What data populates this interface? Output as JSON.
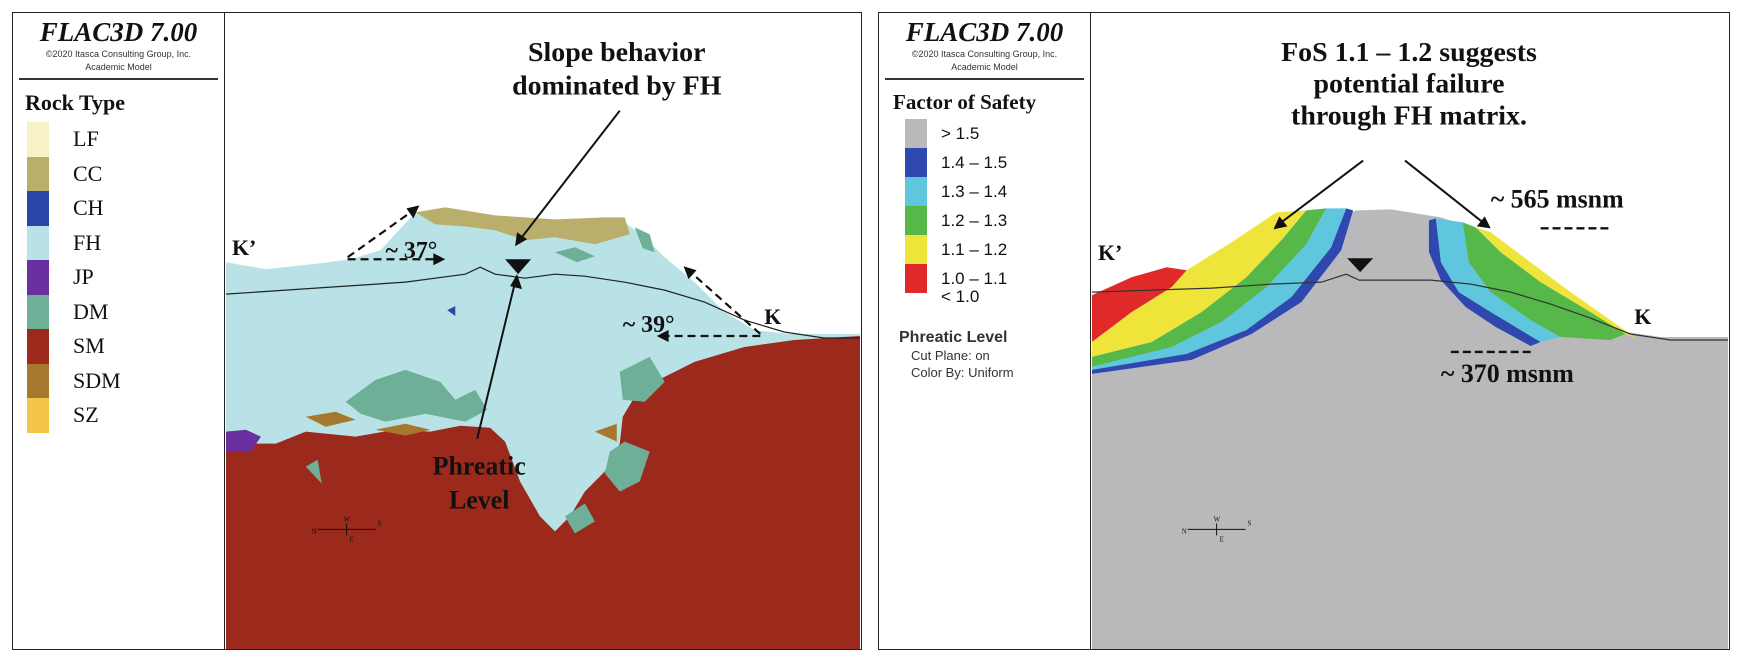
{
  "left_panel": {
    "brand": "FLAC3D 7.00",
    "copyright": "©2020 Itasca Consulting Group, Inc.",
    "model": "Academic Model",
    "legend_title": "Rock Type",
    "rock_types": [
      {
        "label": "LF",
        "color": "#f7f1c8"
      },
      {
        "label": "CC",
        "color": "#b9ae6c"
      },
      {
        "label": "CH",
        "color": "#2a45a8"
      },
      {
        "label": "FH",
        "color": "#b8e2e6"
      },
      {
        "label": "JP",
        "color": "#6a2fa0"
      },
      {
        "label": "DM",
        "color": "#6eb097"
      },
      {
        "label": "SM",
        "color": "#9b2a1c"
      },
      {
        "label": "SDM",
        "color": "#a5782e"
      },
      {
        "label": "SZ",
        "color": "#f3c64a"
      }
    ],
    "annotation_title_1": "Slope behavior",
    "annotation_title_2": "dominated by FH",
    "phreatic_1": "Phreatic",
    "phreatic_2": "Level",
    "angle_left": "~ 37°",
    "angle_right": "~ 39°",
    "label_kprime": "K’",
    "label_k": "K",
    "compass": {
      "n": "N",
      "w": "W",
      "e": "E",
      "s": "S"
    }
  },
  "right_panel": {
    "brand": "FLAC3D 7.00",
    "copyright": "©2020 Itasca Consulting Group, Inc.",
    "model": "Academic Model",
    "legend_title": "Factor of Safety",
    "fos_classes": [
      {
        "label": "> 1.5",
        "color": "#b9b9bb"
      },
      {
        "label": "1.4 – 1.5",
        "color": "#2f48b0"
      },
      {
        "label": "1.3 – 1.4",
        "color": "#5ec7de"
      },
      {
        "label": "1.2 – 1.3",
        "color": "#55b848"
      },
      {
        "label": "1.1 – 1.2",
        "color": "#eee43a"
      },
      {
        "label": "1.0 – 1.1",
        "color": "#e02a2a"
      }
    ],
    "fos_last": "< 1.0",
    "phreatic_title": "Phreatic Level",
    "cut_plane": "Cut Plane: on",
    "color_by": "Color By: Uniform",
    "annotation_1": "FoS 1.1 – 1.2 suggests",
    "annotation_2": "potential failure",
    "annotation_3": "through FH matrix.",
    "elev_high": "~ 565 msnm",
    "elev_low": "~ 370 msnm",
    "label_kprime": "K’",
    "label_k": "K",
    "compass": {
      "n": "N",
      "w": "W",
      "e": "E",
      "s": "S"
    }
  }
}
